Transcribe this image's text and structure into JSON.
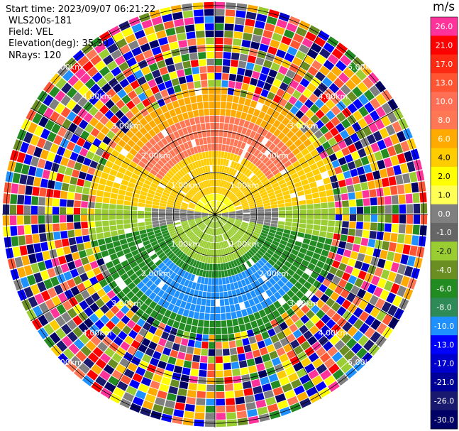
{
  "header": {
    "start_time": "Start time: 2023/09/07 06:21:22",
    "site": "WLS200s-181",
    "field": "Field: VEL",
    "elevation": "Elevation(deg): 35.30",
    "nrays": "NRays: 120"
  },
  "chart_data": {
    "type": "heatmap",
    "subtype": "ppi-polar",
    "title": "",
    "rings": [
      {
        "range_km": 1.0,
        "label": "1.00km"
      },
      {
        "range_km": 2.0,
        "label": "2.00km"
      },
      {
        "range_km": 3.0,
        "label": "3.00km"
      },
      {
        "range_km": 4.0,
        "label": "4.00km"
      },
      {
        "range_km": 5.0,
        "label": "5.00km"
      }
    ],
    "max_range_km": 5.1,
    "spokes_deg": [
      0,
      30,
      60,
      90,
      120,
      150,
      180,
      210,
      240,
      270,
      300,
      330
    ],
    "n_rays": 120,
    "n_gates": 30,
    "valid_range_km": 3.0,
    "colorbar": {
      "unit": "m/s",
      "ticks": [
        "26.0",
        "21.0",
        "17.0",
        "13.0",
        "10.0",
        "8.0",
        "6.0",
        "4.0",
        "2.0",
        "1.0",
        "0.0",
        "-1.0",
        "-2.0",
        "-4.0",
        "-6.0",
        "-8.0",
        "-10.0",
        "-13.0",
        "-17.0",
        "-21.0",
        "-26.0",
        "-30.0"
      ],
      "colors": [
        "#ff3399",
        "#ff0000",
        "#ff2a14",
        "#ff5533",
        "#ff6f55",
        "#ff7755",
        "#ffaa00",
        "#ffcc00",
        "#ffff00",
        "#ffff55",
        "#808080",
        "#666666",
        "#9acd32",
        "#6b8e23",
        "#228b22",
        "#2e8b57",
        "#1e90ff",
        "#0000ff",
        "#0000cd",
        "#000099",
        "#191970",
        "#000066"
      ]
    }
  }
}
